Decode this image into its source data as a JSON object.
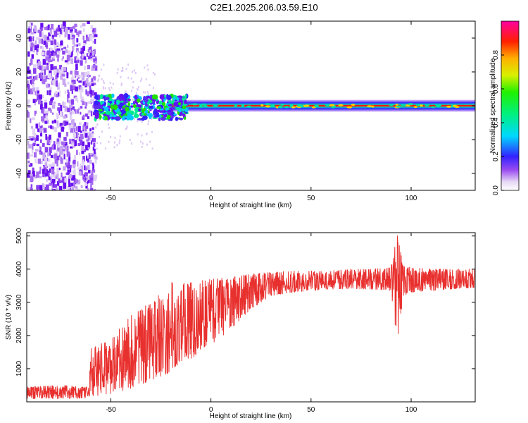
{
  "title": "C2E1.2025.206.03.59.E10",
  "chart_data": [
    {
      "type": "heatmap",
      "xlabel": "Height of straight line (km)",
      "ylabel": "Frequency (Hz)",
      "xlim": [
        -92,
        132
      ],
      "ylim": [
        -50,
        50
      ],
      "xticks": [
        -50,
        0,
        50,
        100
      ],
      "yticks": [
        -40,
        -20,
        0,
        20,
        40
      ],
      "colorbar": {
        "label": "Normalized spectral amplitude",
        "range": [
          0,
          1
        ],
        "ticks": [
          "0.0",
          "0.2",
          "0.4",
          "0.6",
          "0.8"
        ]
      },
      "regions": [
        {
          "x_range": [
            -92,
            -58
          ],
          "description_values": {
            "freq_spread": [
              -50,
              50
            ],
            "amplitude": 0.15
          }
        },
        {
          "x_range": [
            -58,
            -22
          ],
          "description_values": {
            "freq_spread": [
              -8,
              6
            ],
            "amplitude": 0.45
          }
        },
        {
          "x_range": [
            -22,
            132
          ],
          "description_values": {
            "freq_spread": [
              -2,
              2
            ],
            "amplitude": 0.95
          }
        }
      ]
    },
    {
      "type": "line",
      "xlabel": "Height of straight line (km)",
      "ylabel": "SNR (10 * v/v)",
      "xlim": [
        -92,
        132
      ],
      "ylim": [
        0,
        5100
      ],
      "xticks": [
        -50,
        0,
        50,
        100
      ],
      "yticks": [
        1000,
        2000,
        3000,
        4000,
        5000
      ],
      "color": "#e8302e",
      "envelope": {
        "x": [
          -92,
          -75,
          -61,
          -60,
          -50,
          -40,
          -30,
          -20,
          -10,
          0,
          10,
          20,
          30,
          40,
          50,
          60,
          70,
          80,
          90,
          93,
          96,
          100,
          110,
          120,
          132
        ],
        "low": [
          100,
          100,
          100,
          150,
          250,
          400,
          650,
          900,
          1300,
          1700,
          2200,
          2800,
          3200,
          3300,
          3350,
          3400,
          3400,
          3400,
          3350,
          1700,
          3200,
          3300,
          3350,
          3400,
          3450
        ],
        "high": [
          450,
          500,
          450,
          1600,
          1900,
          2600,
          3000,
          3600,
          3600,
          3700,
          3750,
          3850,
          3900,
          3950,
          3950,
          3950,
          4000,
          4000,
          4050,
          5050,
          4100,
          4050,
          4000,
          4000,
          4000
        ]
      }
    }
  ]
}
